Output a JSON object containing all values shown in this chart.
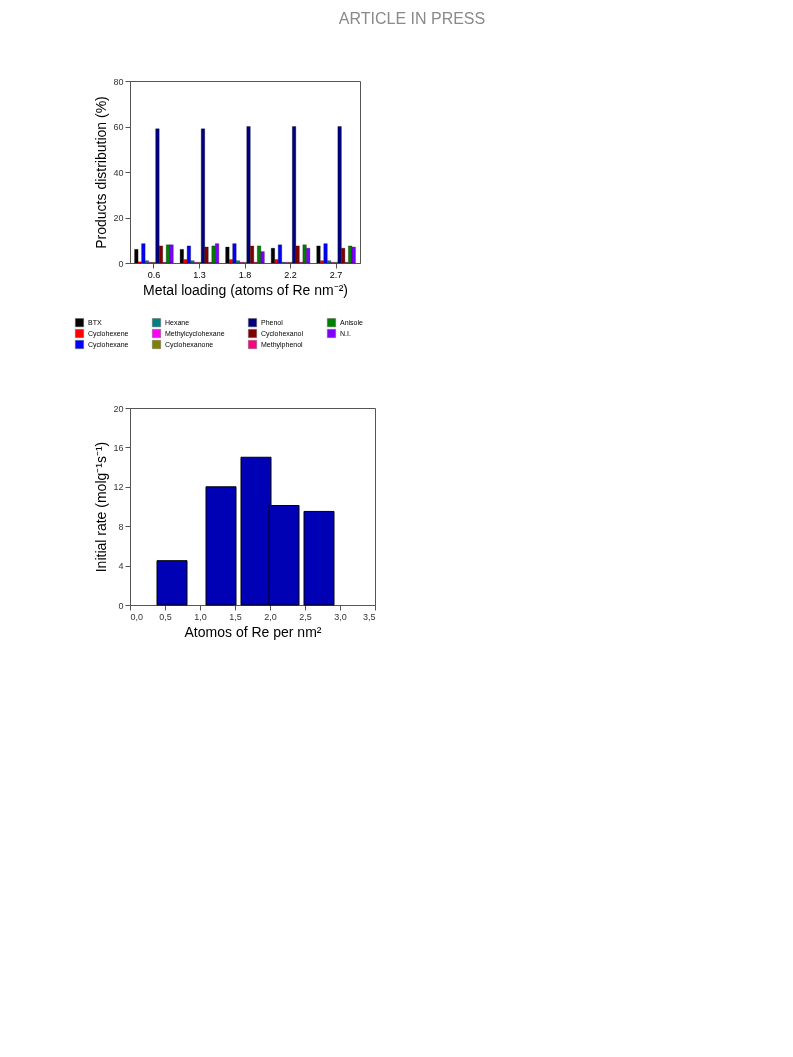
{
  "chart_data": [
    {
      "type": "bar",
      "annotations": [
        "ARTICLE IN PRESS"
      ],
      "xlabel": "Metal loading (atoms of Re nm⁻²)",
      "ylabel": "Products distribution (%)",
      "categories": [
        "0.6",
        "1.3",
        "1.8",
        "2.2",
        "2.7"
      ],
      "series": [
        {
          "name": "BTX",
          "color": "#000000",
          "values": [
            6,
            6,
            7,
            6.5,
            7.5
          ]
        },
        {
          "name": "Cyclohexene",
          "color": "#ff0000",
          "values": [
            0.5,
            1.5,
            1.5,
            1.5,
            1
          ]
        },
        {
          "name": "Cyclohexane",
          "color": "#0000ff",
          "values": [
            8.5,
            7.5,
            8.5,
            8,
            8.5
          ]
        },
        {
          "name": "Hexane",
          "color": "#008080",
          "values": [
            1,
            1,
            1,
            0.3,
            1
          ]
        },
        {
          "name": "Methylcyclohexane",
          "color": "#ff00ff",
          "values": [
            0.3,
            0.3,
            0.3,
            0.3,
            0.3
          ]
        },
        {
          "name": "Cyclohexanone",
          "color": "#808000",
          "values": [
            0.3,
            0.3,
            0.3,
            0.3,
            0.3
          ]
        },
        {
          "name": "Phenol",
          "color": "#000080",
          "values": [
            59,
            59,
            60,
            60,
            60
          ]
        },
        {
          "name": "Cyclohexanol",
          "color": "#800000",
          "values": [
            7.5,
            7,
            7.5,
            7.5,
            6.5
          ]
        },
        {
          "name": "Methylphenol",
          "color": "#ff0080",
          "values": [
            0.3,
            0.3,
            0.3,
            0.3,
            0.3
          ]
        },
        {
          "name": "Anisole",
          "color": "#008000",
          "values": [
            8,
            7.5,
            7.5,
            8,
            7.5
          ]
        },
        {
          "name": "N.I.",
          "color": "#8000ff",
          "values": [
            8,
            8.5,
            5,
            6.5,
            7
          ]
        }
      ],
      "ylim": [
        0,
        80
      ],
      "yticks": [
        0,
        20,
        40,
        60,
        80
      ],
      "legend": "bottom",
      "grid": false
    },
    {
      "type": "bar",
      "xlabel": "Atomos of Re per nm²",
      "ylabel": "Initial rate (molg⁻¹s⁻¹)",
      "x": [
        0.6,
        1.3,
        1.8,
        2.2,
        2.7
      ],
      "values": [
        4.5,
        12,
        15,
        10.1,
        9.5
      ],
      "color": "#0000b4",
      "xlim": [
        0,
        3.5
      ],
      "xticks": [
        {
          "value": 0,
          "label": "0,0"
        },
        {
          "value": 0.5,
          "label": "0,5"
        },
        {
          "value": 1,
          "label": "1,0"
        },
        {
          "value": 1.5,
          "label": "1,5"
        },
        {
          "value": 2,
          "label": "2,0"
        },
        {
          "value": 2.5,
          "label": "2,5"
        },
        {
          "value": 3,
          "label": "3,0"
        },
        {
          "value": 3.5,
          "label": "3,5"
        }
      ],
      "ylim": [
        0,
        20
      ],
      "yticks": [
        0,
        4,
        8,
        12,
        16,
        20
      ],
      "grid": false
    }
  ]
}
